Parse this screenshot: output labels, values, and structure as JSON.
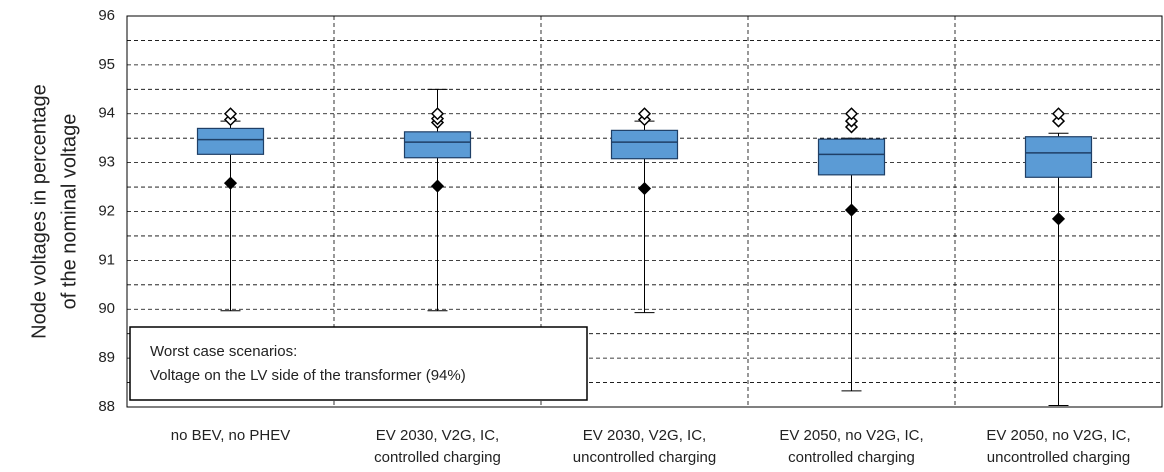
{
  "chart_data": {
    "type": "box",
    "ylabel": [
      "Node voltages in percentage",
      "of the nominal voltage"
    ],
    "categories": [
      [
        "no BEV, no PHEV"
      ],
      [
        "EV 2030, V2G, IC,",
        "controlled charging"
      ],
      [
        "EV 2030, V2G, IC,",
        "uncontrolled charging"
      ],
      [
        "EV 2050, no V2G, IC,",
        "controlled charging"
      ],
      [
        "EV 2050, no V2G, IC,",
        "uncontrolled charging"
      ]
    ],
    "color": "#5b9bd5",
    "boxes": [
      {
        "min": 89.97,
        "q1": 93.17,
        "median": 93.47,
        "q3": 93.7,
        "max": 93.85,
        "open_points": [
          93.88,
          94.0
        ],
        "filled_points": [
          92.58
        ]
      },
      {
        "min": 89.97,
        "q1": 93.1,
        "median": 93.42,
        "q3": 93.63,
        "max": 94.5,
        "open_points": [
          93.82,
          93.9,
          94.0
        ],
        "filled_points": [
          92.52
        ]
      },
      {
        "min": 89.93,
        "q1": 93.08,
        "median": 93.42,
        "q3": 93.66,
        "max": 93.85,
        "open_points": [
          93.88,
          94.0
        ],
        "filled_points": [
          92.47
        ]
      },
      {
        "min": 88.33,
        "q1": 92.75,
        "median": 93.17,
        "q3": 93.48,
        "max": 93.5,
        "open_points": [
          93.73,
          93.85,
          94.0
        ],
        "filled_points": [
          92.03
        ]
      },
      {
        "min": 88.03,
        "q1": 92.7,
        "median": 93.2,
        "q3": 93.53,
        "max": 93.6,
        "open_points": [
          93.85,
          94.0
        ],
        "filled_points": [
          91.85
        ]
      }
    ],
    "ylim": [
      88,
      96
    ],
    "yticks": [
      88,
      89,
      90,
      91,
      92,
      93,
      94,
      95,
      96
    ],
    "minor_yticks": [
      88.5,
      89.5,
      90.5,
      91.5,
      92.5,
      93.5,
      94.5,
      95.5
    ],
    "grid": true,
    "annotation": [
      "Worst case scenarios:",
      "Voltage on the LV side of the transformer (94%)"
    ]
  }
}
